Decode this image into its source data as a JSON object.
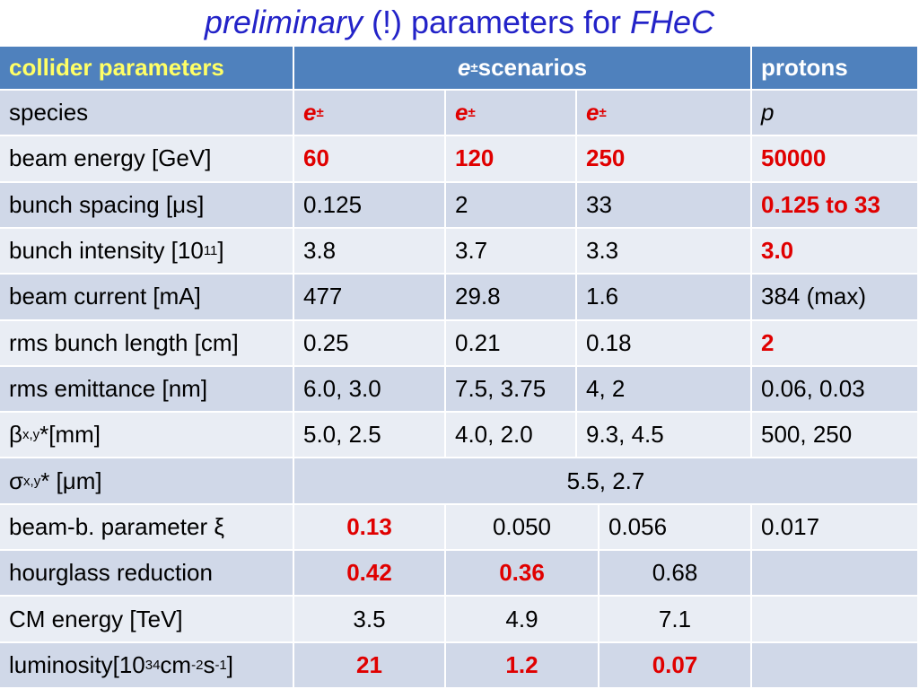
{
  "title": {
    "parts": [
      {
        "text": "preliminary",
        "italic": true
      },
      " (!) parameters for ",
      {
        "text": "FHeC",
        "italic": true
      }
    ]
  },
  "table": {
    "header": [
      "collider parameters",
      {
        "parts": [
          {
            "text": "e",
            "italic": true
          },
          {
            "text": "±",
            "sup": true
          },
          " scenarios"
        ]
      },
      "protons"
    ],
    "rows": [
      {
        "cells": [
          "species",
          {
            "parts": [
              {
                "text": "e",
                "italic": true
              },
              {
                "text": "±",
                "sup": true
              }
            ],
            "highlight": true
          },
          {
            "parts": [
              {
                "text": "e",
                "italic": true
              },
              {
                "text": "±",
                "sup": true
              }
            ],
            "highlight": true
          },
          {
            "parts": [
              {
                "text": "e",
                "italic": true
              },
              {
                "text": "±",
                "sup": true
              }
            ],
            "highlight": true
          },
          {
            "parts": [
              {
                "text": "p",
                "italic": true
              }
            ]
          }
        ]
      },
      {
        "cells": [
          "beam energy  [GeV]",
          {
            "parts": [
              "60"
            ],
            "highlight": true
          },
          {
            "parts": [
              "120"
            ],
            "highlight": true
          },
          {
            "parts": [
              "250"
            ],
            "highlight": true
          },
          {
            "parts": [
              "50000"
            ],
            "highlight": true
          }
        ]
      },
      {
        "cells": [
          "bunch spacing [μs]",
          "0.125",
          "2",
          "33",
          {
            "parts": [
              "0.125 to 33"
            ],
            "highlight": true
          }
        ]
      },
      {
        "cells": [
          {
            "parts": [
              "bunch intensity [10",
              {
                "text": "11",
                "sup": true
              },
              "]"
            ]
          },
          "3.8",
          "3.7",
          "3.3",
          {
            "parts": [
              "3.0"
            ],
            "highlight": true
          }
        ]
      },
      {
        "cells": [
          "beam current [mA]",
          "477",
          "29.8",
          "1.6",
          "384 (max)"
        ]
      },
      {
        "cells": [
          "rms bunch length [cm]",
          "0.25",
          "0.21",
          "0.18",
          {
            "parts": [
              "2"
            ],
            "highlight": true
          }
        ]
      },
      {
        "cells": [
          "rms emittance [nm]",
          "6.0, 3.0",
          "7.5, 3.75",
          "4, 2",
          "0.06, 0.03"
        ]
      },
      {
        "cells": [
          {
            "parts": [
              "β",
              {
                "text": "x,y",
                "sub": true
              },
              "*[mm]"
            ]
          },
          "5.0, 2.5",
          "4.0, 2.0",
          "9.3, 4.5",
          "500, 250"
        ]
      },
      {
        "cells": [
          {
            "parts": [
              "σ",
              {
                "text": "x,y",
                "sub": true
              },
              "* [μm]"
            ]
          },
          "5.5, 2.7"
        ]
      },
      {
        "cells": [
          "beam-b. parameter ξ",
          {
            "parts": [
              "0.13"
            ],
            "highlight": true
          },
          "0.050",
          "0.056",
          "0.017"
        ]
      },
      {
        "cells": [
          "hourglass reduction",
          {
            "parts": [
              "0.42"
            ],
            "highlight": true
          },
          {
            "parts": [
              "0.36"
            ],
            "highlight": true
          },
          "0.68"
        ]
      },
      {
        "cells": [
          "CM energy [TeV]",
          "3.5",
          "4.9",
          "7.1"
        ]
      },
      {
        "cells": [
          {
            "parts": [
              "luminosity[10",
              {
                "text": "34",
                "sup": true
              },
              "cm",
              {
                "text": "-2",
                "sup": true
              },
              "s",
              {
                "text": "-1",
                "sup": true
              },
              "]"
            ]
          },
          {
            "parts": [
              "21"
            ],
            "highlight": true
          },
          {
            "parts": [
              "1.2"
            ],
            "highlight": true
          },
          {
            "parts": [
              "0.07"
            ],
            "highlight": true
          }
        ]
      }
    ]
  }
}
